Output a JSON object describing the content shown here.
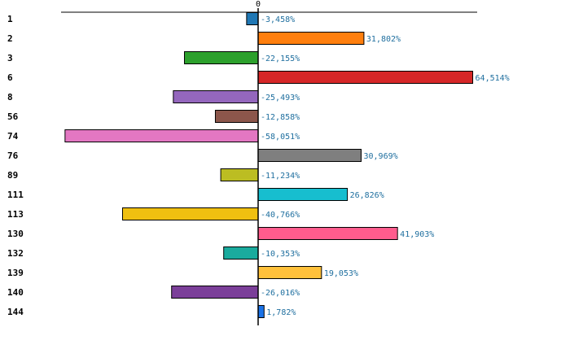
{
  "chart_data": {
    "type": "bar",
    "orientation": "horizontal",
    "title": "",
    "xlabel": "",
    "ylabel": "",
    "zero_tick_label": "0",
    "xlim": [
      -70,
      70
    ],
    "categories": [
      "1",
      "2",
      "3",
      "6",
      "8",
      "56",
      "74",
      "76",
      "89",
      "111",
      "113",
      "130",
      "132",
      "139",
      "140",
      "144"
    ],
    "values": [
      -3.458,
      31.802,
      -22.155,
      64.514,
      -25.493,
      -12.858,
      -58.051,
      30.969,
      -11.234,
      26.826,
      -40.766,
      41.903,
      -10.353,
      19.053,
      -26.016,
      1.782
    ],
    "value_labels": [
      "-3,458%",
      "31,802%",
      "-22,155%",
      "64,514%",
      "-25,493%",
      "-12,858%",
      "-58,051%",
      "30,969%",
      "-11,234%",
      "26,826%",
      "-40,766%",
      "41,903%",
      "-10,353%",
      "19,053%",
      "-26,016%",
      "1,782%"
    ],
    "colors": [
      "#1f77b4",
      "#ff7f0e",
      "#2ca02c",
      "#d62728",
      "#9467bd",
      "#8c564b",
      "#e377c2",
      "#7f7f7f",
      "#bcbd22",
      "#17becf",
      "#f0c010",
      "#ff5c8d",
      "#1aab9e",
      "#ffc13b",
      "#7b3f99",
      "#1a73e8"
    ]
  }
}
